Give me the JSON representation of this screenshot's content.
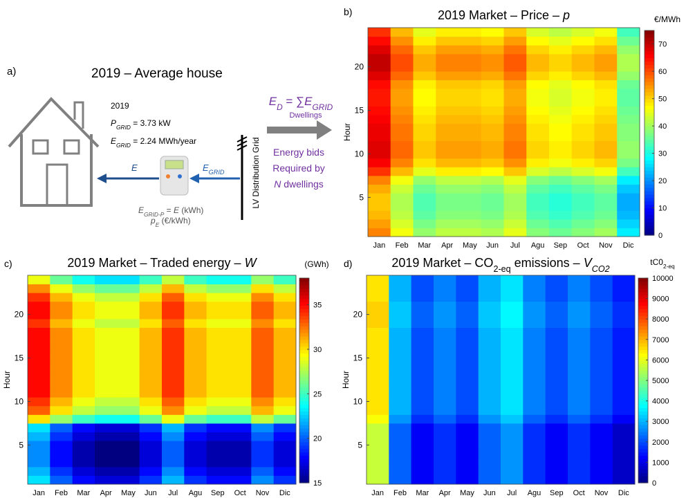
{
  "panel_a": {
    "label": "a)",
    "title": "2019 – Average house",
    "year": "2019",
    "p_grid": [
      {
        "text": "P",
        "italic": true
      },
      {
        "text": "GRID",
        "sub": true,
        "italic": true
      },
      {
        "text": " = 3.73 kW"
      }
    ],
    "e_grid": [
      {
        "text": "E",
        "italic": true
      },
      {
        "text": "GRID",
        "sub": true,
        "italic": true
      },
      {
        "text": " = 2.24 MWh/year"
      }
    ],
    "flow_e": [
      {
        "text": "E",
        "italic": true
      }
    ],
    "flow_egrid": [
      {
        "text": "E",
        "italic": true
      },
      {
        "text": "GRID",
        "sub": true,
        "italic": true
      }
    ],
    "e_grid_p": [
      {
        "text": "E",
        "italic": true
      },
      {
        "text": "GRID-P",
        "sub": true,
        "italic": true
      },
      {
        "text": " = "
      },
      {
        "text": "E",
        "italic": true
      },
      {
        "text": "  (kWh)"
      }
    ],
    "p_e": [
      {
        "text": "p",
        "italic": true
      },
      {
        "text": "E",
        "sub": true,
        "italic": true
      },
      {
        "text": " (€/kWh)"
      }
    ],
    "grid_label": "LV Distribution Grid",
    "e_d": [
      {
        "text": "E",
        "italic": true
      },
      {
        "text": "D",
        "sub": true,
        "italic": true
      },
      {
        "text": " = ∑"
      },
      {
        "text": "E",
        "italic": true
      },
      {
        "text": "GRID",
        "sub": true,
        "italic": true
      }
    ],
    "dwellings": "Dwellings",
    "bids": [
      "Energy bids",
      "Required by"
    ],
    "n_dwellings": [
      {
        "text": "N",
        "italic": true
      },
      {
        "text": " dwellings"
      }
    ]
  },
  "chart_data": [
    {
      "type": "heatmap",
      "panel_label": "b)",
      "title": [
        {
          "text": "2019 Market – Price – "
        },
        {
          "text": "p",
          "italic": true
        }
      ],
      "y_label": "Hour",
      "colorbar_label": [
        {
          "text": "€/MWh"
        }
      ],
      "categories": [
        "Jan",
        "Feb",
        "Mar",
        "Apr",
        "May",
        "Jun",
        "Jul",
        "Agu",
        "Sep",
        "Oct",
        "Nov",
        "Dic"
      ],
      "y": [
        1,
        2,
        3,
        4,
        5,
        6,
        7,
        8,
        9,
        10,
        11,
        12,
        13,
        14,
        15,
        16,
        17,
        18,
        19,
        20,
        21,
        22,
        23,
        24
      ],
      "ylim": [
        0.5,
        24.5
      ],
      "yticks": [
        5,
        10,
        15,
        20
      ],
      "zlim": [
        0,
        75
      ],
      "zticks": [
        0,
        10,
        20,
        30,
        40,
        50,
        60,
        70
      ],
      "colormap": "jet",
      "values": [
        [
          56,
          46,
          39,
          42,
          42,
          41,
          45,
          38,
          36,
          38,
          40,
          27
        ],
        [
          54,
          44,
          37,
          40,
          40,
          39,
          43,
          36,
          34,
          36,
          38,
          25
        ],
        [
          52,
          42,
          35,
          38,
          38,
          37,
          41,
          34,
          32,
          34,
          36,
          23
        ],
        [
          51,
          41,
          34,
          37,
          37,
          36,
          40,
          33,
          31,
          33,
          35,
          22
        ],
        [
          51,
          41,
          34,
          37,
          37,
          36,
          40,
          33,
          31,
          33,
          35,
          22
        ],
        [
          53,
          43,
          36,
          39,
          39,
          38,
          42,
          35,
          33,
          35,
          37,
          24
        ],
        [
          56,
          46,
          39,
          42,
          42,
          41,
          45,
          38,
          36,
          38,
          40,
          27
        ],
        [
          62,
          52,
          45,
          48,
          48,
          47,
          51,
          44,
          42,
          44,
          46,
          33
        ],
        [
          66,
          56,
          49,
          52,
          52,
          51,
          55,
          48,
          46,
          48,
          50,
          37
        ],
        [
          68,
          58,
          51,
          54,
          54,
          53,
          57,
          50,
          48,
          50,
          52,
          39
        ],
        [
          68,
          58,
          51,
          54,
          54,
          53,
          57,
          50,
          48,
          50,
          52,
          39
        ],
        [
          67,
          57,
          50,
          53,
          53,
          52,
          56,
          49,
          47,
          49,
          51,
          38
        ],
        [
          67,
          57,
          50,
          53,
          53,
          52,
          56,
          49,
          47,
          49,
          51,
          38
        ],
        [
          66,
          56,
          49,
          52,
          52,
          51,
          55,
          48,
          46,
          48,
          50,
          37
        ],
        [
          65,
          55,
          48,
          51,
          51,
          50,
          54,
          47,
          45,
          47,
          49,
          36
        ],
        [
          64,
          54,
          47,
          50,
          50,
          49,
          53,
          46,
          44,
          46,
          48,
          35
        ],
        [
          64,
          54,
          47,
          50,
          50,
          49,
          53,
          46,
          44,
          46,
          48,
          35
        ],
        [
          65,
          55,
          48,
          51,
          51,
          50,
          54,
          47,
          45,
          47,
          49,
          36
        ],
        [
          68,
          58,
          51,
          54,
          54,
          53,
          57,
          50,
          48,
          50,
          52,
          39
        ],
        [
          70,
          60,
          53,
          56,
          56,
          55,
          59,
          52,
          50,
          52,
          54,
          41
        ],
        [
          70,
          60,
          53,
          56,
          56,
          55,
          59,
          52,
          50,
          52,
          54,
          41
        ],
        [
          68,
          58,
          51,
          54,
          54,
          53,
          57,
          50,
          48,
          50,
          52,
          39
        ],
        [
          65,
          55,
          48,
          51,
          51,
          50,
          54,
          47,
          45,
          47,
          49,
          36
        ],
        [
          62,
          52,
          45,
          48,
          48,
          47,
          51,
          44,
          42,
          44,
          46,
          33
        ]
      ]
    },
    {
      "type": "heatmap",
      "panel_label": "c)",
      "title": [
        {
          "text": "2019 Market – Traded energy – "
        },
        {
          "text": "W",
          "italic": true
        }
      ],
      "y_label": "Hour",
      "colorbar_label": [
        {
          "text": "(GWh)"
        }
      ],
      "categories": [
        "Jan",
        "Feb",
        "Mar",
        "Apr",
        "May",
        "Jun",
        "Jul",
        "Agu",
        "Sep",
        "Oct",
        "Nov",
        "Dic"
      ],
      "y": [
        1,
        2,
        3,
        4,
        5,
        6,
        7,
        8,
        9,
        10,
        11,
        12,
        13,
        14,
        15,
        16,
        17,
        18,
        19,
        20,
        21,
        22,
        23,
        24
      ],
      "ylim": [
        0.5,
        24.5
      ],
      "yticks": [
        5,
        10,
        15,
        20
      ],
      "zlim": [
        15,
        38
      ],
      "zticks": [
        15,
        20,
        25,
        30,
        35
      ],
      "colormap": "jet",
      "values": [
        [
          23,
          20,
          18,
          17,
          17,
          19,
          22,
          19,
          18,
          18,
          21,
          19
        ],
        [
          22,
          19,
          17,
          16,
          16,
          18,
          21,
          18,
          17,
          17,
          20,
          18
        ],
        [
          21,
          18,
          16,
          15,
          15,
          17,
          20,
          17,
          16,
          16,
          19,
          17
        ],
        [
          21,
          18,
          16,
          15,
          15,
          17,
          20,
          17,
          16,
          16,
          19,
          17
        ],
        [
          21,
          18,
          16,
          15,
          15,
          17,
          20,
          17,
          16,
          16,
          19,
          17
        ],
        [
          22,
          19,
          17,
          16,
          16,
          18,
          21,
          18,
          17,
          17,
          20,
          18
        ],
        [
          23,
          20,
          18,
          17,
          17,
          19,
          22,
          19,
          18,
          18,
          21,
          19
        ],
        [
          30,
          27,
          25,
          24,
          24,
          26,
          29,
          26,
          25,
          25,
          28,
          26
        ],
        [
          33,
          30,
          28,
          27,
          27,
          29,
          32,
          29,
          28,
          28,
          31,
          29
        ],
        [
          34,
          31,
          29,
          28,
          28,
          30,
          33,
          30,
          29,
          29,
          32,
          30
        ],
        [
          35,
          32,
          30,
          29,
          29,
          31,
          34,
          31,
          30,
          30,
          33,
          31
        ],
        [
          35,
          32,
          30,
          29,
          29,
          31,
          34,
          31,
          30,
          30,
          33,
          31
        ],
        [
          35,
          32,
          30,
          29,
          29,
          31,
          34,
          31,
          30,
          30,
          33,
          31
        ],
        [
          35,
          32,
          30,
          29,
          29,
          31,
          34,
          31,
          30,
          30,
          33,
          31
        ],
        [
          35,
          32,
          30,
          29,
          29,
          31,
          34,
          31,
          30,
          30,
          33,
          31
        ],
        [
          35,
          32,
          30,
          29,
          29,
          31,
          34,
          31,
          30,
          30,
          33,
          31
        ],
        [
          35,
          32,
          30,
          29,
          29,
          31,
          34,
          31,
          30,
          30,
          33,
          31
        ],
        [
          35,
          32,
          30,
          29,
          29,
          31,
          34,
          31,
          30,
          30,
          33,
          31
        ],
        [
          34,
          31,
          29,
          28,
          28,
          30,
          33,
          30,
          29,
          29,
          32,
          30
        ],
        [
          35,
          32,
          30,
          29,
          29,
          31,
          34,
          31,
          30,
          30,
          33,
          31
        ],
        [
          35,
          32,
          30,
          29,
          29,
          31,
          34,
          31,
          30,
          30,
          33,
          31
        ],
        [
          34,
          31,
          29,
          28,
          28,
          30,
          33,
          30,
          29,
          29,
          32,
          30
        ],
        [
          32,
          29,
          27,
          26,
          26,
          28,
          31,
          28,
          27,
          27,
          30,
          28
        ],
        [
          29,
          26,
          24,
          23,
          23,
          25,
          28,
          25,
          24,
          24,
          27,
          25
        ]
      ]
    },
    {
      "type": "heatmap",
      "panel_label": "d)",
      "title": [
        {
          "text": "2019 Market – CO"
        },
        {
          "text": "2-eq",
          "sub": true
        },
        {
          "text": " emissions – "
        },
        {
          "text": "V",
          "italic": true
        },
        {
          "text": "CO2",
          "sub": true,
          "italic": true
        }
      ],
      "y_label": "Hour",
      "colorbar_label": [
        {
          "text": "tC0"
        },
        {
          "text": "2-eq",
          "sub": true
        }
      ],
      "categories": [
        "Jan",
        "Feb",
        "Mar",
        "Apr",
        "May",
        "Jun",
        "Jul",
        "Agu",
        "Sep",
        "Oct",
        "Nov",
        "Dic"
      ],
      "y": [
        1,
        2,
        3,
        4,
        5,
        6,
        7,
        8,
        9,
        10,
        11,
        12,
        13,
        14,
        15,
        16,
        17,
        18,
        19,
        20,
        21,
        22,
        23,
        24
      ],
      "ylim": [
        0.5,
        24.5
      ],
      "yticks": [
        5,
        10,
        15,
        20
      ],
      "zlim": [
        0,
        10000
      ],
      "zticks": [
        0,
        1000,
        2000,
        3000,
        4000,
        5000,
        6000,
        7000,
        8000,
        9000,
        10000
      ],
      "colormap": "jet",
      "values": [
        [
          5700,
          2200,
          1200,
          1700,
          1200,
          2200,
          2700,
          1700,
          1200,
          1700,
          1200,
          700
        ],
        [
          5700,
          2200,
          1200,
          1700,
          1200,
          2200,
          2700,
          1700,
          1200,
          1700,
          1200,
          700
        ],
        [
          5700,
          2200,
          1200,
          1700,
          1200,
          2200,
          2700,
          1700,
          1200,
          1700,
          1200,
          700
        ],
        [
          5700,
          2200,
          1200,
          1700,
          1200,
          2200,
          2700,
          1700,
          1200,
          1700,
          1200,
          700
        ],
        [
          5700,
          2200,
          1200,
          1700,
          1200,
          2200,
          2700,
          1700,
          1200,
          1700,
          1200,
          700
        ],
        [
          5700,
          2200,
          1200,
          1700,
          1200,
          2200,
          2700,
          1700,
          1200,
          1700,
          1200,
          700
        ],
        [
          5700,
          2200,
          1200,
          1700,
          1200,
          2200,
          2700,
          1700,
          1200,
          1700,
          1200,
          700
        ],
        [
          6200,
          2700,
          1700,
          2200,
          1700,
          2700,
          3200,
          2200,
          1700,
          2200,
          1700,
          1200
        ],
        [
          6500,
          3000,
          2000,
          2500,
          2000,
          3000,
          3500,
          2500,
          2000,
          2500,
          2000,
          1500
        ],
        [
          6500,
          3000,
          2000,
          2500,
          2000,
          3000,
          3500,
          2500,
          2000,
          2500,
          2000,
          1500
        ],
        [
          6500,
          3000,
          2000,
          2500,
          2000,
          3000,
          3500,
          2500,
          2000,
          2500,
          2000,
          1500
        ],
        [
          6500,
          3000,
          2000,
          2500,
          2000,
          3000,
          3500,
          2500,
          2000,
          2500,
          2000,
          1500
        ],
        [
          6500,
          3000,
          2000,
          2500,
          2000,
          3000,
          3500,
          2500,
          2000,
          2500,
          2000,
          1500
        ],
        [
          6500,
          3000,
          2000,
          2500,
          2000,
          3000,
          3500,
          2500,
          2000,
          2500,
          2000,
          1500
        ],
        [
          6500,
          3000,
          2000,
          2500,
          2000,
          3000,
          3500,
          2500,
          2000,
          2500,
          2000,
          1500
        ],
        [
          6500,
          3000,
          2000,
          2500,
          2000,
          3000,
          3500,
          2500,
          2000,
          2500,
          2000,
          1500
        ],
        [
          6500,
          3000,
          2000,
          2500,
          2000,
          3000,
          3500,
          2500,
          2000,
          2500,
          2000,
          1500
        ],
        [
          6500,
          3000,
          2000,
          2500,
          2000,
          3000,
          3500,
          2500,
          2000,
          2500,
          2000,
          1500
        ],
        [
          6700,
          3200,
          2200,
          2700,
          2200,
          3200,
          3700,
          2700,
          2200,
          2700,
          2200,
          1700
        ],
        [
          6700,
          3200,
          2200,
          2700,
          2200,
          3200,
          3700,
          2700,
          2200,
          2700,
          2200,
          1700
        ],
        [
          6700,
          3200,
          2200,
          2700,
          2200,
          3200,
          3700,
          2700,
          2200,
          2700,
          2200,
          1700
        ],
        [
          6500,
          3000,
          2000,
          2500,
          2000,
          3000,
          3500,
          2500,
          2000,
          2500,
          2000,
          1500
        ],
        [
          6500,
          3000,
          2000,
          2500,
          2000,
          3000,
          3500,
          2500,
          2000,
          2500,
          2000,
          1500
        ],
        [
          6500,
          3000,
          2000,
          2500,
          2000,
          3000,
          3500,
          2500,
          2000,
          2500,
          2000,
          1500
        ]
      ]
    }
  ]
}
